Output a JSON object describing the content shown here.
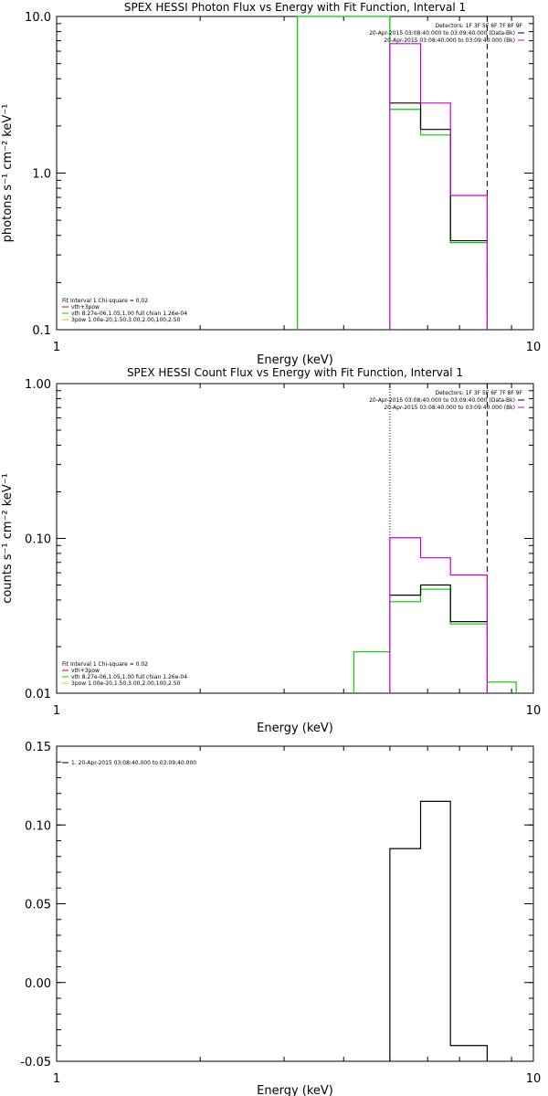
{
  "chart_data": [
    {
      "type": "line",
      "title": "SPEX HESSI Photon Flux vs Energy with Fit Function, Interval 1",
      "xlabel": "Energy (keV)",
      "ylabel": "photons s⁻¹ cm⁻² keV⁻¹",
      "x_scale": "log",
      "y_scale": "log",
      "xlim": [
        1,
        10
      ],
      "ylim": [
        0.1,
        10
      ],
      "x_ticks": [
        "1",
        "10"
      ],
      "y_ticks": [
        "10.0",
        "1.0",
        "0.1"
      ],
      "detectors_label": "Detectors: 1F 3F 5F 6F 7F 8F 9F",
      "legend_right": [
        {
          "text": "20-Apr-2015 03:08:40.000 to 03:09:40.000 (Data-Bk)",
          "color": "#000000"
        },
        {
          "text": "20-Apr-2015 03:08:40.000 to 03:09:40.000 (Bk)",
          "color": "#cc00cc"
        }
      ],
      "legend_left": [
        {
          "text": "Fit Interval  1    Chi-square = 0.02",
          "color": "#000000"
        },
        {
          "text": "vth+3pow",
          "color": "#cc0000"
        },
        {
          "text": "vth 8.27e-06,1.05,1.00  full chian 1.26e-04",
          "color": "#00cc00"
        },
        {
          "text": "3pow 1.00e-20,1.50,3.00,2.00,100,2.50",
          "color": "#cccc00"
        }
      ],
      "vlines": [
        {
          "x": 5.0,
          "style": "dotted",
          "color": "#000000"
        },
        {
          "x": 8.0,
          "style": "dashed",
          "color": "#000000"
        }
      ],
      "series": [
        {
          "color": "#00cc00",
          "points": [
            [
              3.2,
              0.1
            ],
            [
              3.2,
              10.0
            ],
            [
              5.0,
              10.0
            ],
            [
              5.0,
              2.55
            ],
            [
              5.8,
              2.55
            ],
            [
              5.8,
              1.75
            ],
            [
              6.7,
              1.75
            ],
            [
              6.7,
              0.36
            ],
            [
              8.0,
              0.36
            ],
            [
              8.0,
              0.1
            ]
          ]
        },
        {
          "color": "#000000",
          "points": [
            [
              5.0,
              2.8
            ],
            [
              5.8,
              2.8
            ],
            [
              5.8,
              1.9
            ],
            [
              6.7,
              1.9
            ],
            [
              6.7,
              0.37
            ],
            [
              8.0,
              0.37
            ]
          ]
        },
        {
          "color": "#cc00cc",
          "points": [
            [
              5.0,
              0.1
            ],
            [
              5.0,
              6.7
            ],
            [
              5.8,
              6.7
            ],
            [
              5.8,
              2.8
            ],
            [
              6.7,
              2.8
            ],
            [
              6.7,
              0.72
            ],
            [
              8.0,
              0.72
            ],
            [
              8.0,
              0.1
            ]
          ]
        }
      ]
    },
    {
      "type": "line",
      "title": "SPEX HESSI Count Flux vs Energy with Fit Function, Interval 1",
      "xlabel": "Energy (keV)",
      "ylabel": "counts s⁻¹ cm⁻² keV⁻¹",
      "x_scale": "log",
      "y_scale": "log",
      "xlim": [
        1,
        10
      ],
      "ylim": [
        0.01,
        1
      ],
      "x_ticks": [
        "1",
        "10"
      ],
      "y_ticks": [
        "1.00",
        "0.10",
        "0.01"
      ],
      "detectors_label": "Detectors: 1F 3F 5F 6F 7F 8F 9F",
      "legend_right": [
        {
          "text": "20-Apr-2015 03:08:40.000 to 03:09:40.000 (Data-Bk)",
          "color": "#000000"
        },
        {
          "text": "20-Apr-2015 03:08:40.000 to 03:09:40.000 (Bk)",
          "color": "#cc00cc"
        }
      ],
      "legend_left": [
        {
          "text": "Fit Interval  1    Chi-square = 0.02",
          "color": "#000000"
        },
        {
          "text": "vth+3pow",
          "color": "#cc0000"
        },
        {
          "text": "vth 8.27e-06,1.05,1.00  full chian 1.26e-04",
          "color": "#00cc00"
        },
        {
          "text": "3pow 1.00e-20,1.50,3.00,2.00,100,2.50",
          "color": "#cccc00"
        }
      ],
      "vlines": [
        {
          "x": 5.0,
          "style": "dotted",
          "color": "#000000"
        },
        {
          "x": 8.0,
          "style": "dashed",
          "color": "#000000"
        }
      ],
      "series": [
        {
          "color": "#00cc00",
          "points": [
            [
              4.2,
              0.01
            ],
            [
              4.2,
              0.0185
            ],
            [
              5.0,
              0.0185
            ],
            [
              5.0,
              0.039
            ],
            [
              5.8,
              0.039
            ],
            [
              5.8,
              0.047
            ],
            [
              6.7,
              0.047
            ],
            [
              6.7,
              0.028
            ],
            [
              8.0,
              0.028
            ],
            [
              8.0,
              0.0118
            ],
            [
              9.2,
              0.0118
            ],
            [
              9.2,
              0.01
            ]
          ]
        },
        {
          "color": "#000000",
          "points": [
            [
              5.0,
              0.043
            ],
            [
              5.8,
              0.043
            ],
            [
              5.8,
              0.05
            ],
            [
              6.7,
              0.05
            ],
            [
              6.7,
              0.029
            ],
            [
              8.0,
              0.029
            ]
          ]
        },
        {
          "color": "#cc00cc",
          "points": [
            [
              5.0,
              0.01
            ],
            [
              5.0,
              0.101
            ],
            [
              5.8,
              0.101
            ],
            [
              5.8,
              0.075
            ],
            [
              6.7,
              0.075
            ],
            [
              6.7,
              0.058
            ],
            [
              8.0,
              0.058
            ],
            [
              8.0,
              0.01
            ]
          ]
        }
      ]
    },
    {
      "type": "line",
      "title": "",
      "xlabel": "Energy (keV)",
      "ylabel": "",
      "x_scale": "log",
      "y_scale": "linear",
      "xlim": [
        1,
        10
      ],
      "ylim": [
        -0.05,
        0.15
      ],
      "x_ticks": [
        "1",
        "10"
      ],
      "y_ticks": [
        "0.15",
        "0.10",
        "0.05",
        "0.00",
        "-0.05"
      ],
      "legend_left": [
        {
          "text": "1. 20-Apr-2015 03:08:40.000 to 03:09:40.000",
          "color": "#000000"
        }
      ],
      "series": [
        {
          "color": "#000000",
          "points": [
            [
              5.0,
              -0.05
            ],
            [
              5.0,
              0.085
            ],
            [
              5.8,
              0.085
            ],
            [
              5.8,
              0.115
            ],
            [
              6.7,
              0.115
            ],
            [
              6.7,
              -0.04
            ],
            [
              8.0,
              -0.04
            ],
            [
              8.0,
              -0.05
            ]
          ]
        }
      ]
    }
  ]
}
